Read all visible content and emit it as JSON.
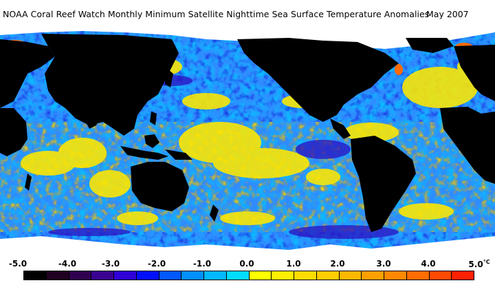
{
  "title": "NOAA Coral Reef Watch Monthly Minimum Satellite Nighttime Sea Surface Temperature Anomalies",
  "date": "May 2007",
  "colorbar": {
    "ticks": [
      "-5.0",
      "-4.0",
      "-3.0",
      "-2.0",
      "-1.0",
      "0.0",
      "1.0",
      "2.0",
      "3.0",
      "4.0",
      "5.0"
    ],
    "unit": "°C",
    "range": [
      -5.0,
      5.0
    ],
    "colors": [
      "#000000",
      "#200020",
      "#300050",
      "#3a0090",
      "#3000d8",
      "#0010ff",
      "#0058ff",
      "#0090ff",
      "#00b8ff",
      "#00dcff",
      "#ffff00",
      "#ffee00",
      "#ffdc00",
      "#ffcc00",
      "#ffb800",
      "#ffa000",
      "#ff8800",
      "#ff6c00",
      "#ff4a00",
      "#ff2000"
    ]
  },
  "map": {
    "ocean_base": "#2f8cff",
    "land_color": "#000000",
    "ice_color": "#ffffff",
    "warm_color": "#ffe800",
    "cold_color": "#1420c8",
    "hot_color": "#ff6a00"
  }
}
